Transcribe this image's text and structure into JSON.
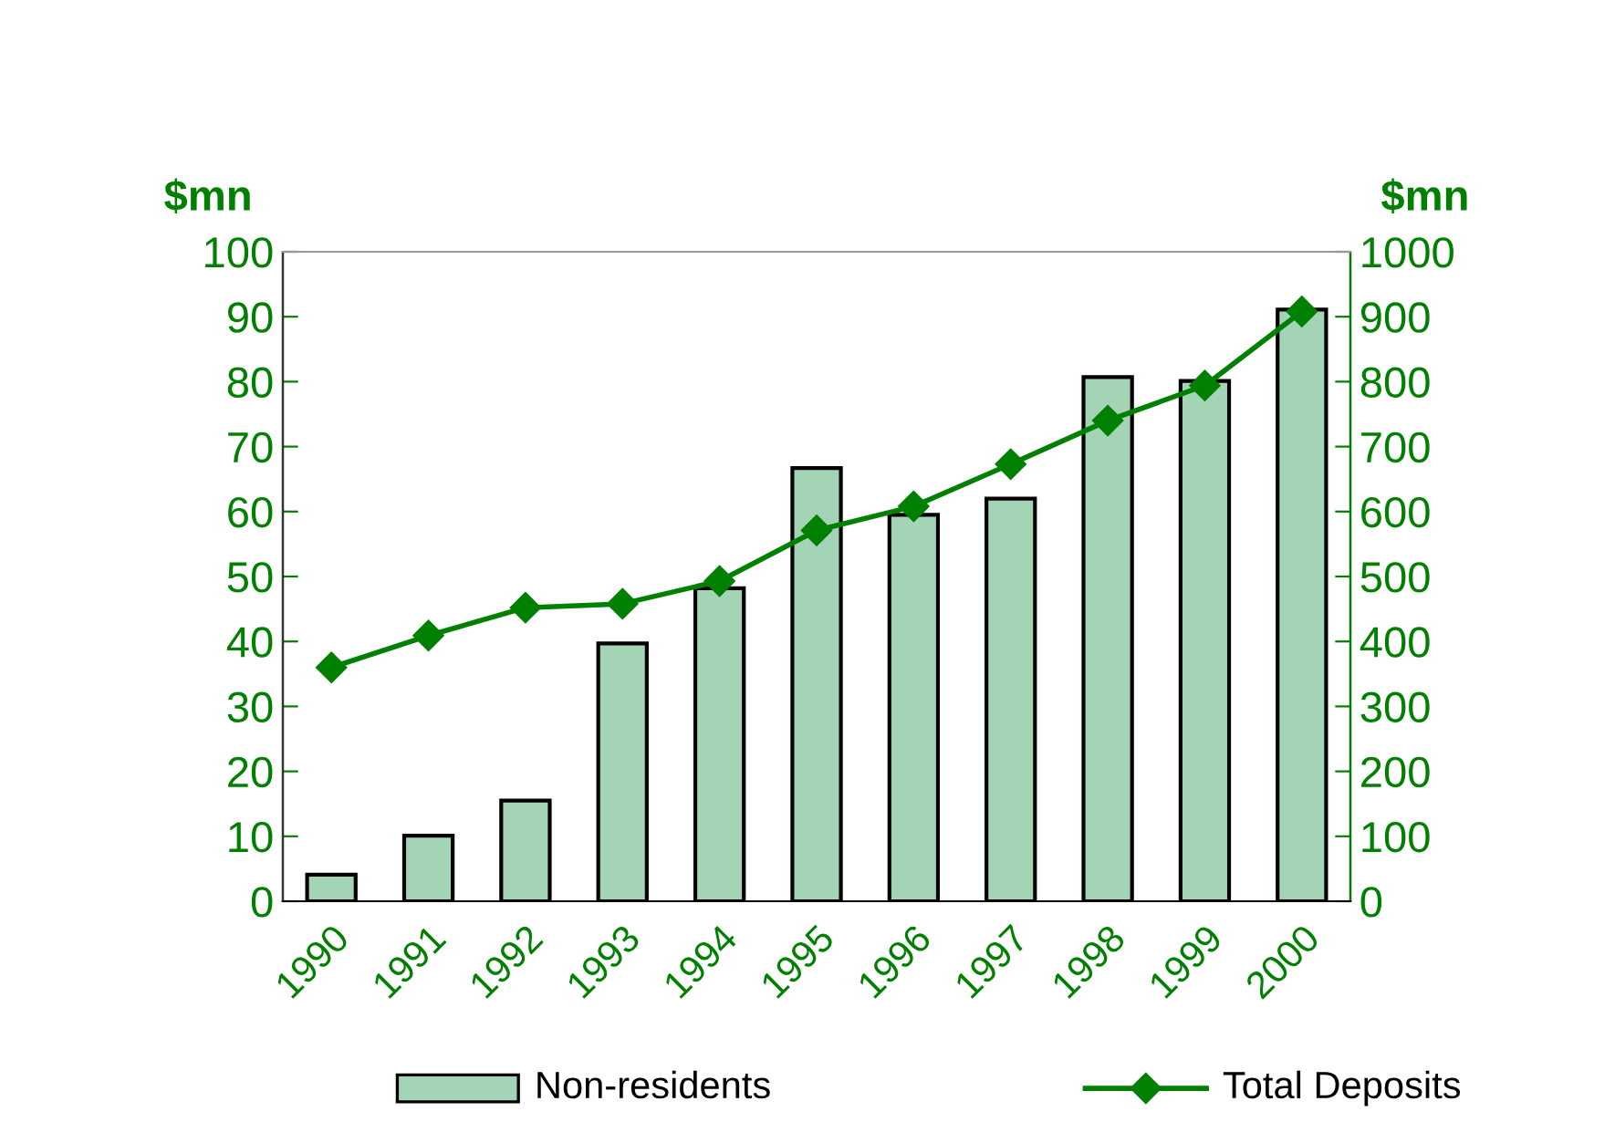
{
  "chart_data": {
    "type": "bar",
    "ylabel": "$mn",
    "y2label": "$mn",
    "categories": [
      "1990",
      "1991",
      "1992",
      "1993",
      "1994",
      "1995",
      "1996",
      "1997",
      "1998",
      "1999",
      "2000"
    ],
    "series": [
      {
        "name": "Non-residents",
        "color": "#a3d4b5",
        "values": [
          4.1,
          10.1,
          15.5,
          39.7,
          48.2,
          66.7,
          59.5,
          62,
          80.7,
          80.1,
          91.1
        ]
      },
      {
        "name": "Total Deposits",
        "type": "line",
        "axis": "y2",
        "color": "#008000",
        "marker": "diamond",
        "values": [
          360,
          409,
          452,
          458,
          493,
          571,
          608,
          673,
          740,
          794,
          908
        ]
      }
    ],
    "ylim": [
      0,
      100
    ],
    "yticks": [
      0,
      10,
      20,
      30,
      40,
      50,
      60,
      70,
      80,
      90,
      100
    ],
    "y2lim": [
      0,
      1000
    ],
    "y2ticks": [
      0,
      100,
      200,
      300,
      400,
      500,
      600,
      700,
      800,
      900,
      1000
    ],
    "grid": false,
    "legend": "bottom"
  }
}
